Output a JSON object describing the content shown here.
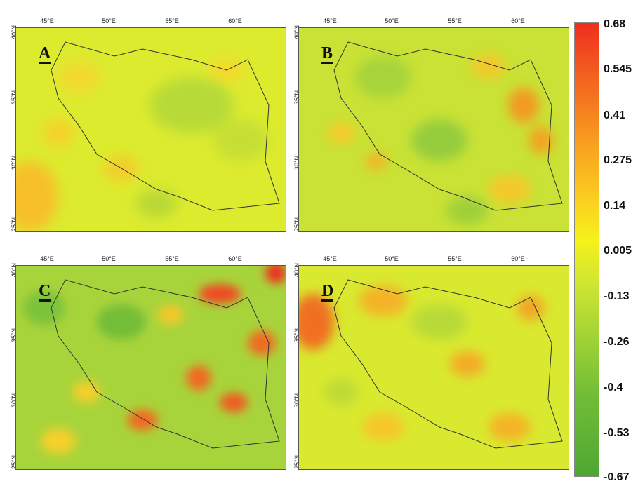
{
  "lon_labels": [
    "45°E",
    "50°E",
    "55°E",
    "60°E"
  ],
  "lat_labels": [
    "40°N",
    "35°N",
    "30°N",
    "25°N"
  ],
  "panels": [
    {
      "letter": "A"
    },
    {
      "letter": "B"
    },
    {
      "letter": "C"
    },
    {
      "letter": "D"
    }
  ],
  "colorbar": {
    "ticks": [
      "0.68",
      "0.545",
      "0.41",
      "0.275",
      "0.14",
      "0.005",
      "-0.13",
      "-0.26",
      "-0.4",
      "-0.53",
      "-0.67"
    ],
    "colors": {
      "max": "#ee2e1f",
      "mid": "#f5f21a",
      "min": "#4ea733"
    }
  }
}
